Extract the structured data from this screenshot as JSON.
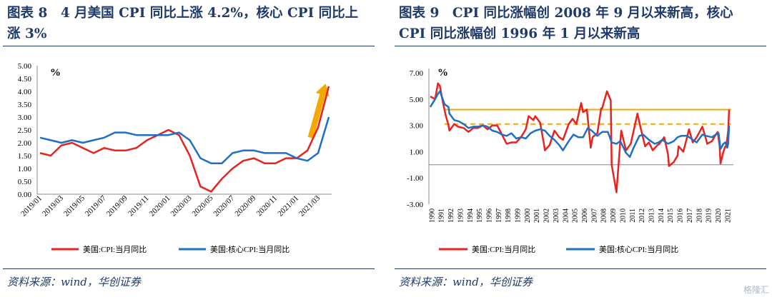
{
  "left": {
    "title_line1": "图表 8　4 月美国 CPI 同比上涨 4.2%，核心 CPI 同比上",
    "title_line2": "涨 3%",
    "source": "资料来源：wind，华创证券"
  },
  "right": {
    "title_line1": "图表 9　CPI 同比涨幅创 2008 年 9 月以来新高，核心",
    "title_line2": "CPI 同比涨幅创 1996 年 1 月以来新高",
    "source": "资料来源：wind，华创证券"
  },
  "watermark": "格隆汇",
  "chart_data": [
    {
      "type": "line",
      "title": "",
      "unit_label": "%",
      "xlabel": "",
      "ylabel": "",
      "ylim": [
        0,
        5
      ],
      "yticks": [
        "5.00",
        "4.50",
        "4.00",
        "3.50",
        "3.00",
        "2.50",
        "2.00",
        "1.50",
        "1.00",
        "0.50",
        "0.00"
      ],
      "x": [
        "2019/01",
        "2019/02",
        "2019/03",
        "2019/04",
        "2019/05",
        "2019/06",
        "2019/07",
        "2019/08",
        "2019/09",
        "2019/10",
        "2019/11",
        "2019/12",
        "2020/01",
        "2020/02",
        "2020/03",
        "2020/04",
        "2020/05",
        "2020/06",
        "2020/07",
        "2020/08",
        "2020/09",
        "2020/10",
        "2020/11",
        "2020/12",
        "2021/01",
        "2021/02",
        "2021/03",
        "2021/04"
      ],
      "xtick_labels": [
        "2019/01",
        "2019/03",
        "2019/05",
        "2019/07",
        "2019/09",
        "2019/11",
        "2020/01",
        "2020/03",
        "2020/05",
        "2020/07",
        "2020/09",
        "2020/11",
        "2021/01",
        "2021/03"
      ],
      "series": [
        {
          "name": "美国:CPI:当月同比",
          "color": "#e8231f",
          "values": [
            1.6,
            1.5,
            1.9,
            2.0,
            1.8,
            1.6,
            1.8,
            1.7,
            1.7,
            1.8,
            2.1,
            2.3,
            2.5,
            2.3,
            1.5,
            0.3,
            0.1,
            0.6,
            1.0,
            1.3,
            1.4,
            1.2,
            1.2,
            1.4,
            1.4,
            1.7,
            2.6,
            4.2
          ]
        },
        {
          "name": "美国:核心CPI:当月同比",
          "color": "#1f6fc5",
          "values": [
            2.2,
            2.1,
            2.0,
            2.1,
            2.0,
            2.1,
            2.2,
            2.4,
            2.4,
            2.3,
            2.3,
            2.3,
            2.3,
            2.4,
            2.1,
            1.4,
            1.2,
            1.2,
            1.6,
            1.7,
            1.7,
            1.6,
            1.6,
            1.6,
            1.4,
            1.3,
            1.6,
            3.0
          ]
        }
      ],
      "annotation": "arrow-up",
      "legend_position": "bottom"
    },
    {
      "type": "line",
      "title": "",
      "unit_label": "%",
      "xlabel": "",
      "ylabel": "",
      "ylim": [
        -3,
        7
      ],
      "yticks": [
        "7.00",
        "5.00",
        "3.00",
        "1.00",
        "-1.00",
        "-3.00"
      ],
      "x_years": [
        "1990",
        "1991",
        "1992",
        "1993",
        "1994",
        "1995",
        "1996",
        "1997",
        "1998",
        "1999",
        "2000",
        "2001",
        "2002",
        "2003",
        "2004",
        "2005",
        "2006",
        "2007",
        "2008",
        "2009",
        "2010",
        "2011",
        "2012",
        "2013",
        "2014",
        "2015",
        "2016",
        "2017",
        "2018",
        "2019",
        "2020",
        "2021"
      ],
      "series": [
        {
          "name": "美国:CPI:当月同比",
          "color": "#e8231f",
          "points": [
            [
              1990.0,
              5.2
            ],
            [
              1990.5,
              5.0
            ],
            [
              1990.8,
              6.2
            ],
            [
              1991.0,
              6.0
            ],
            [
              1991.3,
              4.8
            ],
            [
              1991.6,
              3.8
            ],
            [
              1991.9,
              3.0
            ],
            [
              1992.0,
              2.6
            ],
            [
              1992.5,
              3.1
            ],
            [
              1992.9,
              2.9
            ],
            [
              1993.5,
              2.8
            ],
            [
              1994.0,
              2.5
            ],
            [
              1994.5,
              2.8
            ],
            [
              1995.0,
              2.8
            ],
            [
              1995.5,
              3.0
            ],
            [
              1996.0,
              2.7
            ],
            [
              1996.5,
              3.0
            ],
            [
              1997.0,
              3.0
            ],
            [
              1997.5,
              2.3
            ],
            [
              1998.0,
              1.6
            ],
            [
              1998.5,
              1.7
            ],
            [
              1999.0,
              1.7
            ],
            [
              1999.5,
              2.1
            ],
            [
              2000.0,
              2.7
            ],
            [
              2000.3,
              3.7
            ],
            [
              2000.8,
              3.4
            ],
            [
              2001.0,
              3.7
            ],
            [
              2001.5,
              3.2
            ],
            [
              2001.9,
              1.6
            ],
            [
              2002.0,
              1.1
            ],
            [
              2002.5,
              1.5
            ],
            [
              2003.0,
              2.6
            ],
            [
              2003.5,
              2.1
            ],
            [
              2003.9,
              1.9
            ],
            [
              2004.5,
              3.1
            ],
            [
              2004.9,
              3.5
            ],
            [
              2005.3,
              3.1
            ],
            [
              2005.8,
              4.7
            ],
            [
              2006.0,
              4.0
            ],
            [
              2006.4,
              4.2
            ],
            [
              2006.8,
              1.3
            ],
            [
              2007.0,
              2.1
            ],
            [
              2007.5,
              2.4
            ],
            [
              2007.9,
              4.3
            ],
            [
              2008.0,
              4.3
            ],
            [
              2008.5,
              5.6
            ],
            [
              2008.9,
              4.9
            ],
            [
              2009.0,
              0.0
            ],
            [
              2009.5,
              -2.1
            ],
            [
              2009.9,
              1.8
            ],
            [
              2010.0,
              2.6
            ],
            [
              2010.5,
              1.1
            ],
            [
              2010.9,
              1.5
            ],
            [
              2011.0,
              1.6
            ],
            [
              2011.7,
              3.9
            ],
            [
              2012.0,
              2.9
            ],
            [
              2012.5,
              1.4
            ],
            [
              2012.9,
              1.7
            ],
            [
              2013.3,
              1.1
            ],
            [
              2013.8,
              1.5
            ],
            [
              2014.0,
              1.6
            ],
            [
              2014.5,
              2.1
            ],
            [
              2014.9,
              0.8
            ],
            [
              2015.0,
              -0.1
            ],
            [
              2015.5,
              0.2
            ],
            [
              2015.9,
              0.7
            ],
            [
              2016.0,
              1.4
            ],
            [
              2016.5,
              1.0
            ],
            [
              2016.9,
              2.1
            ],
            [
              2017.1,
              2.7
            ],
            [
              2017.5,
              1.7
            ],
            [
              2017.9,
              2.1
            ],
            [
              2018.5,
              2.9
            ],
            [
              2018.9,
              1.9
            ],
            [
              2019.0,
              1.6
            ],
            [
              2019.5,
              1.8
            ],
            [
              2019.9,
              2.3
            ],
            [
              2020.1,
              2.5
            ],
            [
              2020.3,
              1.5
            ],
            [
              2020.4,
              0.1
            ],
            [
              2020.7,
              1.0
            ],
            [
              2020.9,
              1.4
            ],
            [
              2021.0,
              1.4
            ],
            [
              2021.2,
              2.6
            ],
            [
              2021.3,
              4.2
            ]
          ]
        },
        {
          "name": "美国:核心CPI:当月同比",
          "color": "#1f6fc5",
          "points": [
            [
              1990.0,
              4.4
            ],
            [
              1990.5,
              5.0
            ],
            [
              1990.8,
              5.4
            ],
            [
              1991.0,
              5.6
            ],
            [
              1991.5,
              4.6
            ],
            [
              1991.9,
              4.4
            ],
            [
              1992.0,
              3.9
            ],
            [
              1992.5,
              3.4
            ],
            [
              1993.0,
              3.3
            ],
            [
              1993.5,
              3.1
            ],
            [
              1994.0,
              2.8
            ],
            [
              1994.5,
              2.9
            ],
            [
              1995.0,
              2.9
            ],
            [
              1995.5,
              3.0
            ],
            [
              1996.0,
              2.9
            ],
            [
              1996.5,
              2.6
            ],
            [
              1997.0,
              2.5
            ],
            [
              1997.5,
              2.3
            ],
            [
              1998.0,
              2.2
            ],
            [
              1998.5,
              2.4
            ],
            [
              1999.0,
              2.0
            ],
            [
              1999.5,
              2.1
            ],
            [
              2000.0,
              2.0
            ],
            [
              2000.5,
              2.4
            ],
            [
              2001.0,
              2.6
            ],
            [
              2001.5,
              2.7
            ],
            [
              2002.0,
              2.6
            ],
            [
              2002.5,
              2.2
            ],
            [
              2003.0,
              1.9
            ],
            [
              2003.5,
              1.5
            ],
            [
              2003.9,
              1.1
            ],
            [
              2004.5,
              1.8
            ],
            [
              2005.0,
              2.3
            ],
            [
              2005.5,
              2.1
            ],
            [
              2006.0,
              2.1
            ],
            [
              2006.5,
              2.8
            ],
            [
              2006.9,
              2.6
            ],
            [
              2007.5,
              2.2
            ],
            [
              2008.0,
              2.5
            ],
            [
              2008.6,
              2.5
            ],
            [
              2009.0,
              1.7
            ],
            [
              2009.5,
              1.6
            ],
            [
              2009.9,
              1.8
            ],
            [
              2010.5,
              0.9
            ],
            [
              2010.9,
              0.6
            ],
            [
              2011.3,
              1.3
            ],
            [
              2011.9,
              2.2
            ],
            [
              2012.3,
              2.3
            ],
            [
              2012.9,
              1.9
            ],
            [
              2013.5,
              1.6
            ],
            [
              2013.9,
              1.7
            ],
            [
              2014.3,
              1.9
            ],
            [
              2014.9,
              1.6
            ],
            [
              2015.5,
              1.8
            ],
            [
              2015.9,
              2.1
            ],
            [
              2016.3,
              2.2
            ],
            [
              2016.9,
              2.2
            ],
            [
              2017.3,
              2.0
            ],
            [
              2017.9,
              1.7
            ],
            [
              2018.5,
              2.3
            ],
            [
              2018.9,
              2.2
            ],
            [
              2019.5,
              2.1
            ],
            [
              2019.9,
              2.3
            ],
            [
              2020.2,
              2.4
            ],
            [
              2020.4,
              1.2
            ],
            [
              2020.7,
              1.6
            ],
            [
              2020.9,
              1.7
            ],
            [
              2021.1,
              1.3
            ],
            [
              2021.2,
              1.6
            ],
            [
              2021.3,
              3.0
            ]
          ]
        }
      ],
      "reference_lines": [
        {
          "value": 4.2,
          "color": "#f5a800",
          "style": "solid"
        },
        {
          "value": 3.1,
          "color": "#f5a800",
          "style": "dashed"
        }
      ],
      "legend_position": "bottom"
    }
  ]
}
